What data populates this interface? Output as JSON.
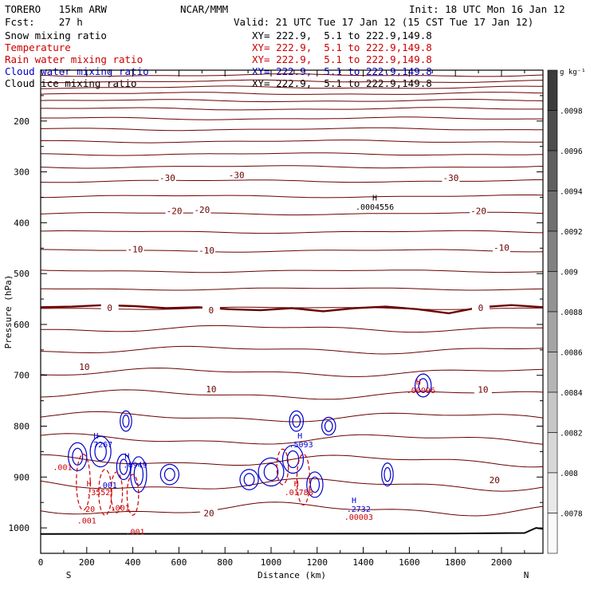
{
  "header": {
    "model": "TORERO   15km ARW",
    "org": "NCAR/MMM",
    "init": "Init: 18 UTC Mon 16 Jan 12",
    "fcst": "Fcst:    27 h",
    "valid": "Valid: 21 UTC Tue 17 Jan 12 (15 CST Tue 17 Jan 12)"
  },
  "fields": [
    {
      "name": "Snow mixing ratio",
      "color": "#000000",
      "xsec": "XY= 222.9,  5.1 to 222.9,149.8"
    },
    {
      "name": "Temperature",
      "color": "#cc0000",
      "xsec": "XY= 222.9,  5.1 to 222.9,149.8"
    },
    {
      "name": "Rain water mixing ratio",
      "color": "#cc0000",
      "xsec": "XY= 222.9,  5.1 to 222.9,149.8"
    },
    {
      "name": "Cloud water mixing ratio",
      "color": "#0000cc",
      "xsec": "XY= 222.9,  5.1 to 222.9,149.8"
    },
    {
      "name": "Cloud ice mixing ratio",
      "color": "#000000",
      "xsec": "XY= 222.9,  5.1 to 222.9,149.8"
    }
  ],
  "colorbar": {
    "unit": "g kg⁻¹",
    "labels": [
      ".0098",
      ".0096",
      ".0094",
      ".0092",
      ".009",
      ".0088",
      ".0086",
      ".0084",
      ".0082",
      ".008",
      ".0078"
    ]
  },
  "chart_data": {
    "type": "contour-cross-section",
    "xlabel": "Distance (km)",
    "ylabel": "Pressure (hPa)",
    "xlim": [
      0,
      2180
    ],
    "ylim": [
      1050,
      100
    ],
    "xticks": [
      0,
      200,
      400,
      600,
      800,
      1000,
      1200,
      1400,
      1600,
      1800,
      2000
    ],
    "yticks": [
      200,
      300,
      400,
      500,
      600,
      700,
      800,
      900,
      1000
    ],
    "end_labels": {
      "left": "S",
      "right": "N"
    },
    "temperature_isotherms_p": [
      110,
      122,
      134,
      146,
      160,
      176,
      195,
      216,
      240,
      265,
      290,
      318,
      348,
      382,
      418,
      455,
      495,
      530,
      568,
      608,
      650,
      694,
      738,
      782,
      826,
      868,
      915,
      963
    ],
    "temperature_labels": [
      {
        "text": "-30",
        "x": 550,
        "p": 312
      },
      {
        "text": "-30",
        "x": 850,
        "p": 306
      },
      {
        "text": "-30",
        "x": 1780,
        "p": 312
      },
      {
        "text": "-20",
        "x": 580,
        "p": 377
      },
      {
        "text": "-20",
        "x": 700,
        "p": 374
      },
      {
        "text": "-20",
        "x": 1900,
        "p": 377
      },
      {
        "text": "-10",
        "x": 410,
        "p": 452
      },
      {
        "text": "-10",
        "x": 720,
        "p": 454
      },
      {
        "text": "-10",
        "x": 2000,
        "p": 449
      },
      {
        "text": "0",
        "x": 300,
        "p": 567
      },
      {
        "text": "0",
        "x": 740,
        "p": 572
      },
      {
        "text": "0",
        "x": 1910,
        "p": 567
      },
      {
        "text": "10",
        "x": 190,
        "p": 683
      },
      {
        "text": "10",
        "x": 740,
        "p": 727
      },
      {
        "text": "10",
        "x": 1920,
        "p": 728
      },
      {
        "text": "20",
        "x": 730,
        "p": 971
      },
      {
        "text": "20",
        "x": 1970,
        "p": 906
      }
    ],
    "zero_isotherm_p": [
      566,
      565,
      562,
      564,
      568,
      566,
      570,
      572,
      568,
      574,
      568,
      565,
      570,
      578,
      566,
      562,
      566
    ],
    "extrema_labels": [
      {
        "text": "H",
        "x": 1450,
        "p": 350,
        "color": "#000000"
      },
      {
        "text": ".0004556",
        "x": 1450,
        "p": 368,
        "color": "#000000"
      },
      {
        "text": "H",
        "x": 240,
        "p": 818,
        "color": "#0000cc"
      },
      {
        "text": ".7267",
        "x": 260,
        "p": 835,
        "color": "#0000cc"
      },
      {
        "text": "H",
        "x": 1125,
        "p": 818,
        "color": "#0000cc"
      },
      {
        "text": ".5093",
        "x": 1130,
        "p": 835,
        "color": "#0000cc"
      },
      {
        "text": "H",
        "x": 375,
        "p": 858,
        "color": "#0000cc"
      },
      {
        "text": ".6949",
        "x": 410,
        "p": 875,
        "color": "#0000cc"
      },
      {
        "text": ".001",
        "x": 290,
        "p": 915,
        "color": "#0000cc"
      },
      {
        "text": "H",
        "x": 210,
        "p": 912,
        "color": "#cc0000"
      },
      {
        "text": ".3552",
        "x": 250,
        "p": 929,
        "color": "#cc0000"
      },
      {
        "text": "H",
        "x": 1110,
        "p": 912,
        "color": "#cc0000"
      },
      {
        "text": ".01788",
        "x": 1120,
        "p": 929,
        "color": "#cc0000"
      },
      {
        "text": "H",
        "x": 1360,
        "p": 945,
        "color": "#0000cc"
      },
      {
        "text": ".2732",
        "x": 1380,
        "p": 962,
        "color": "#0000cc"
      },
      {
        "text": ".00003",
        "x": 1380,
        "p": 978,
        "color": "#cc0000"
      },
      {
        "text": "H",
        "x": 1640,
        "p": 712,
        "color": "#cc0000"
      },
      {
        "text": ".00096",
        "x": 1650,
        "p": 729,
        "color": "#cc0000"
      },
      {
        "text": ".001",
        "x": 95,
        "p": 880,
        "color": "#cc0000"
      },
      {
        "text": ".001",
        "x": 200,
        "p": 985,
        "color": "#cc0000"
      },
      {
        "text": ".001",
        "x": 345,
        "p": 960,
        "color": "#cc0000"
      },
      {
        "text": ".001",
        "x": 410,
        "p": 1007,
        "color": "#cc0000"
      },
      {
        "text": "20",
        "x": 215,
        "p": 962,
        "color": "#cc0000"
      }
    ],
    "cloud_water_contours": [
      {
        "cx": 160,
        "p": 860,
        "rx": 40,
        "dp": 55
      },
      {
        "cx": 260,
        "p": 850,
        "rx": 45,
        "dp": 60
      },
      {
        "cx": 360,
        "p": 880,
        "rx": 30,
        "dp": 50
      },
      {
        "cx": 425,
        "p": 895,
        "rx": 35,
        "dp": 70
      },
      {
        "cx": 370,
        "p": 790,
        "rx": 25,
        "dp": 40
      },
      {
        "cx": 560,
        "p": 895,
        "rx": 40,
        "dp": 40
      },
      {
        "cx": 905,
        "p": 905,
        "rx": 40,
        "dp": 40
      },
      {
        "cx": 1000,
        "p": 890,
        "rx": 55,
        "dp": 55
      },
      {
        "cx": 1095,
        "p": 865,
        "rx": 45,
        "dp": 55
      },
      {
        "cx": 1110,
        "p": 790,
        "rx": 30,
        "dp": 40
      },
      {
        "cx": 1250,
        "p": 800,
        "rx": 30,
        "dp": 35
      },
      {
        "cx": 1190,
        "p": 915,
        "rx": 35,
        "dp": 50
      },
      {
        "cx": 1505,
        "p": 895,
        "rx": 25,
        "dp": 45
      },
      {
        "cx": 1660,
        "p": 720,
        "rx": 35,
        "dp": 45
      }
    ],
    "rain_water_contours": [
      {
        "cx": 185,
        "p": 910,
        "rx": 30,
        "dp": 110
      },
      {
        "cx": 280,
        "p": 930,
        "rx": 28,
        "dp": 90
      },
      {
        "cx": 330,
        "p": 930,
        "rx": 25,
        "dp": 80
      },
      {
        "cx": 400,
        "p": 935,
        "rx": 25,
        "dp": 80
      },
      {
        "cx": 1050,
        "p": 880,
        "rx": 25,
        "dp": 70
      },
      {
        "cx": 1140,
        "p": 905,
        "rx": 28,
        "dp": 100
      }
    ]
  }
}
